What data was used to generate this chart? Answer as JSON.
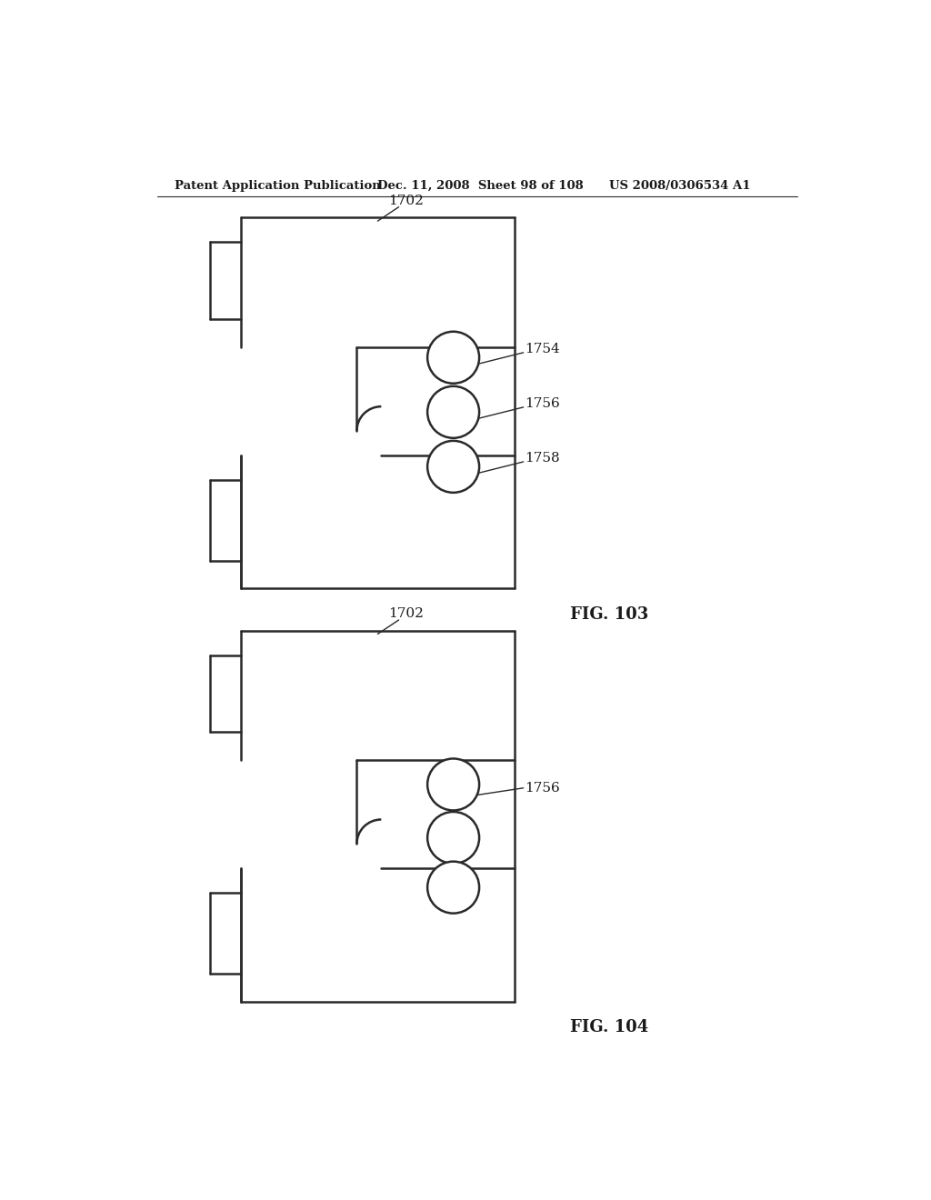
{
  "header_left": "Patent Application Publication",
  "header_mid": "Dec. 11, 2008  Sheet 98 of 108",
  "header_right": "US 2008/0306534 A1",
  "fig103_label": "FIG. 103",
  "fig104_label": "FIG. 104",
  "label_1702": "1702",
  "label_1754": "1754",
  "label_1756": "1756",
  "label_1758": "1758",
  "label_1756b": "1756",
  "bg_color": "#ffffff",
  "line_color": "#2a2a2a",
  "text_color": "#1a1a1a",
  "header_fontsize": 9.5,
  "label_fontsize": 11,
  "fig_label_fontsize": 13
}
